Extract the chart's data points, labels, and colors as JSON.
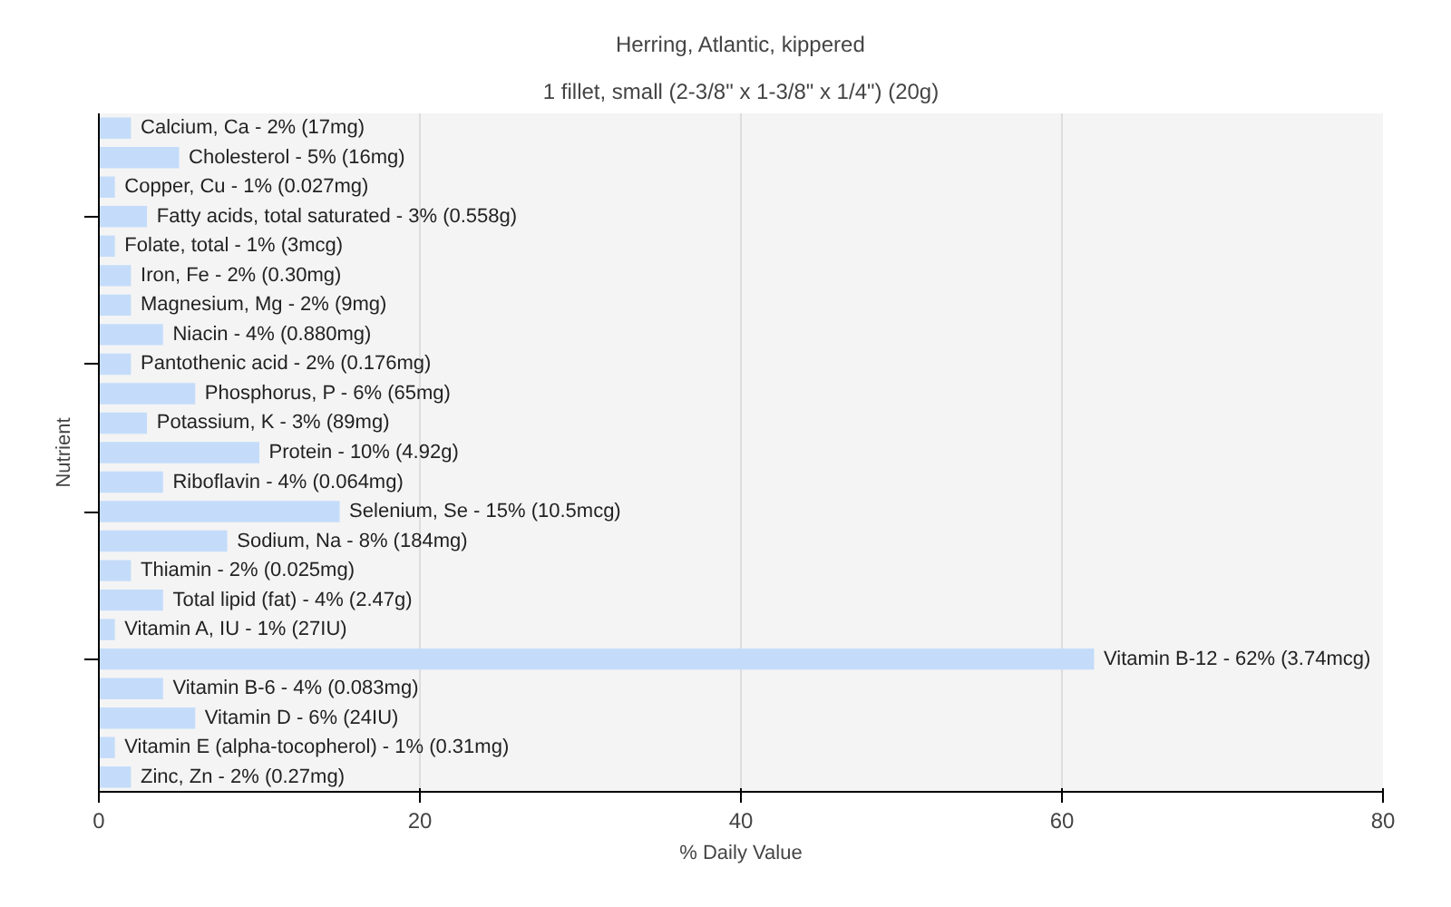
{
  "chart_data": {
    "type": "bar",
    "orientation": "horizontal",
    "title": "Herring, Atlantic, kippered",
    "subtitle": "1 fillet, small (2-3/8\" x 1-3/8\" x 1/4\") (20g)",
    "xlabel": "% Daily Value",
    "ylabel": "Nutrient",
    "categories": [
      "Calcium, Ca - 2% (17mg)",
      "Cholesterol - 5% (16mg)",
      "Copper, Cu - 1% (0.027mg)",
      "Fatty acids, total saturated - 3% (0.558g)",
      "Folate, total - 1% (3mcg)",
      "Iron, Fe - 2% (0.30mg)",
      "Magnesium, Mg - 2% (9mg)",
      "Niacin - 4% (0.880mg)",
      "Pantothenic acid - 2% (0.176mg)",
      "Phosphorus, P - 6% (65mg)",
      "Potassium, K - 3% (89mg)",
      "Protein - 10% (4.92g)",
      "Riboflavin - 4% (0.064mg)",
      "Selenium, Se - 15% (10.5mcg)",
      "Sodium, Na - 8% (184mg)",
      "Thiamin - 2% (0.025mg)",
      "Total lipid (fat) - 4% (2.47g)",
      "Vitamin A, IU - 1% (27IU)",
      "Vitamin B-12 - 62% (3.74mcg)",
      "Vitamin B-6 - 4% (0.083mg)",
      "Vitamin D - 6% (24IU)",
      "Vitamin E (alpha-tocopherol) - 1% (0.31mg)",
      "Zinc, Zn - 2% (0.27mg)"
    ],
    "values": [
      2,
      5,
      1,
      3,
      1,
      2,
      2,
      4,
      2,
      6,
      3,
      10,
      4,
      15,
      8,
      2,
      4,
      1,
      62,
      4,
      6,
      1,
      2
    ],
    "color": "#c4dcfa",
    "xlim": [
      0,
      80
    ],
    "xticks": [
      0,
      20,
      40,
      60,
      80
    ],
    "grid": "x"
  }
}
